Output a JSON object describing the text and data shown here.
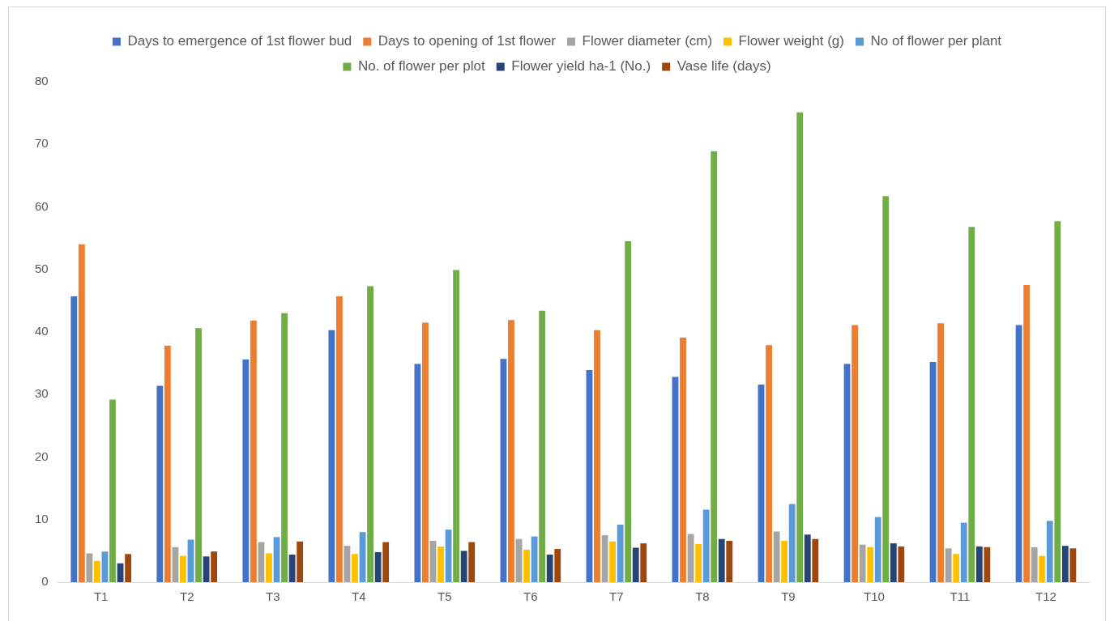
{
  "chart_data": {
    "type": "bar",
    "categories": [
      "T1",
      "T2",
      "T3",
      "T4",
      "T5",
      "T6",
      "T7",
      "T8",
      "T9",
      "T10",
      "T11",
      "T12"
    ],
    "series": [
      {
        "name": "Days to emergence of 1st flower bud",
        "color": "#4472c4",
        "values": [
          45.7,
          31.4,
          35.6,
          40.3,
          34.9,
          35.7,
          33.9,
          32.8,
          31.6,
          34.9,
          35.2,
          41.1
        ]
      },
      {
        "name": "Days to opening of 1st flower",
        "color": "#ed7d31",
        "values": [
          54,
          37.8,
          41.8,
          45.7,
          41.5,
          41.9,
          40.3,
          39.1,
          37.9,
          41.1,
          41.4,
          47.5
        ]
      },
      {
        "name": "Flower diameter (cm)",
        "color": "#a5a5a5",
        "values": [
          4.6,
          5.6,
          6.4,
          5.8,
          6.6,
          6.9,
          7.5,
          7.7,
          8.1,
          6.0,
          5.4,
          5.6
        ]
      },
      {
        "name": "Flower weight (g)",
        "color": "#ffc000",
        "values": [
          3.4,
          4.2,
          4.6,
          4.5,
          5.7,
          5.2,
          6.5,
          6.1,
          6.6,
          5.6,
          4.5,
          4.2
        ]
      },
      {
        "name": "No of flower per plant",
        "color": "#5b9bd5",
        "values": [
          4.9,
          6.8,
          7.2,
          8.0,
          8.4,
          7.3,
          9.2,
          11.6,
          12.5,
          10.4,
          9.5,
          9.8
        ]
      },
      {
        "name": "No. of flower per plot",
        "color": "#70ad47",
        "values": [
          29.2,
          40.6,
          43.0,
          47.3,
          49.9,
          43.4,
          54.5,
          68.9,
          75.1,
          61.7,
          56.8,
          57.7
        ]
      },
      {
        "name": "Flower yield ha-1 (No.)",
        "color": "#264478",
        "values": [
          3.0,
          4.1,
          4.4,
          4.8,
          5.0,
          4.4,
          5.5,
          6.9,
          7.6,
          6.2,
          5.7,
          5.8
        ]
      },
      {
        "name": "Vase life (days)",
        "color": "#9e480e",
        "values": [
          4.5,
          4.9,
          6.5,
          6.4,
          6.4,
          5.3,
          6.2,
          6.6,
          6.9,
          5.7,
          5.6,
          5.4
        ]
      }
    ],
    "ylim": [
      0,
      80
    ],
    "yticks": [
      0,
      10,
      20,
      30,
      40,
      50,
      60,
      70,
      80
    ],
    "grid": false,
    "legend": "top"
  }
}
